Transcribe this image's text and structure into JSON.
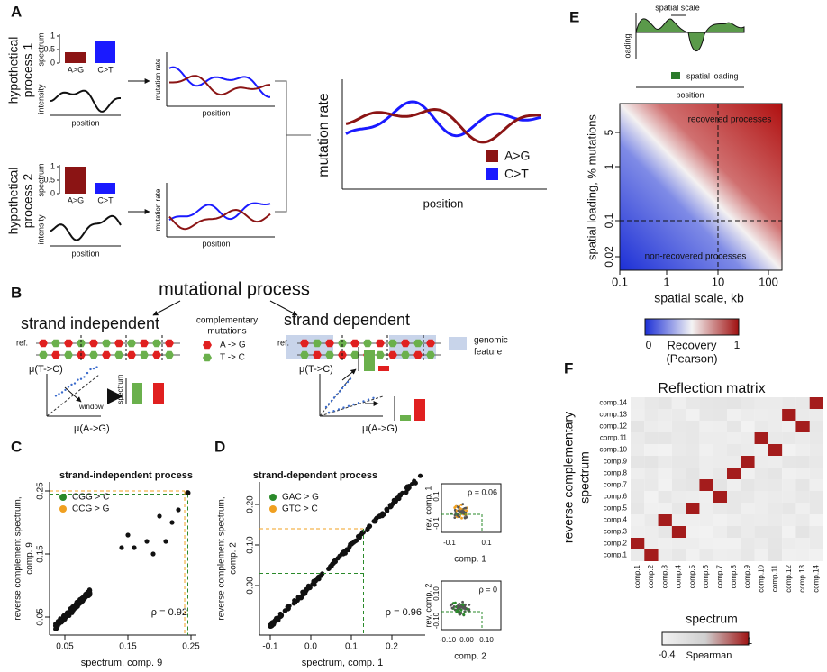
{
  "figure": {
    "panel_labels": {
      "a": "A",
      "b": "B",
      "c": "C",
      "d": "D",
      "e": "E",
      "f": "F"
    },
    "panel_a": {
      "process_1": {
        "line_1": "hypothetical",
        "line_2": "process 1"
      },
      "process_2": {
        "line_1": "hypothetical",
        "line_2": "process 2"
      },
      "spectrum_label": "spectrum",
      "spectrum_ticks": [
        "0",
        "0.5",
        "1"
      ],
      "mutation_types": [
        "A>G",
        "C>T"
      ],
      "intensity_label": "intensity",
      "position_label": "position",
      "mutation_rate_label": "mutation rate"
    },
    "panel_b": {
      "title": "mutational process",
      "strand_independent": "strand independent",
      "strand_dependent": "strand dependent",
      "reference": "ref.",
      "complementary": [
        "complementary",
        "mutations"
      ],
      "mutation_a": "A -> G",
      "mutation_t": "T -> C",
      "feature": [
        "genomic",
        "feature"
      ],
      "mu_tc": "μ(T->C)",
      "mu_ag": "μ(A->G)",
      "spectrum": "spectrum",
      "window": "window"
    },
    "panel_c": {
      "title": "strand-independent process",
      "y_label": [
        "reverse complement spectrum,",
        "comp. 9"
      ],
      "x_label": "spectrum, comp. 9",
      "legend": [
        "CGG > C",
        "CCG > G"
      ],
      "rho": "ρ = 0.92",
      "xticks": [
        "0.05",
        "0.15",
        "0.25"
      ],
      "yticks": [
        "0.05",
        "0.15",
        "0.25"
      ]
    },
    "panel_d": {
      "title": "strand-dependent process",
      "y_label": [
        "reverse complement spectrum,",
        "comp. 2"
      ],
      "x_label": "spectrum, comp. 1",
      "legend": [
        "GAC > G",
        "GTC > C"
      ],
      "rho": "ρ = 0.96",
      "xticks": [
        "-0.1",
        "0.0",
        "0.1",
        "0.2"
      ],
      "yticks": [
        "0.00",
        "0.10",
        "0.20"
      ],
      "inset_1": {
        "rho": "ρ = 0.06",
        "y_label": "rev. comp. 1",
        "x_label": "comp. 1",
        "xticks": [
          "-0.1",
          "0.1"
        ],
        "yticks": [
          "-0.1",
          "0.1"
        ]
      },
      "inset_2": {
        "rho": "ρ = 0",
        "y_label": "rev. comp. 2",
        "x_label": "comp. 2",
        "xticks": [
          "-0.10",
          "0.00",
          "0.10"
        ],
        "yticks": [
          "-0.10",
          "0.10"
        ]
      }
    },
    "panel_e": {
      "spatial_scale": "spatial scale",
      "loading": "loading",
      "legend": "spatial loading",
      "position": "position",
      "recovered": "recovered processes",
      "non_recovered": "non-recovered processes",
      "y_label": "spatial loading, % mutations",
      "x_label": "spatial scale, kb",
      "yticks": [
        "5",
        "1",
        "0.1",
        "0.02"
      ],
      "xticks": [
        "0.1",
        "1",
        "10",
        "100"
      ],
      "colorbar": {
        "min": "0",
        "max": "1",
        "label": "Recovery",
        "sublabel": "(Pearson)"
      }
    },
    "panel_f": {
      "title": "Reflection matrix",
      "components": [
        "comp.1",
        "comp.2",
        "comp.3",
        "comp.4",
        "comp.5",
        "comp.6",
        "comp.7",
        "comp.8",
        "comp.9",
        "comp.10",
        "comp.11",
        "comp.12",
        "comp.13",
        "comp.14"
      ],
      "y_label": [
        "reverse complementary",
        "spectrum"
      ],
      "x_label": "spectrum",
      "colorbar": {
        "min": "-0.4",
        "max": "1",
        "label": "Spearman"
      },
      "matching_component": [
        2,
        1,
        4,
        3,
        5,
        7,
        6,
        8,
        9,
        11,
        10,
        13,
        12,
        14
      ]
    }
  }
}
